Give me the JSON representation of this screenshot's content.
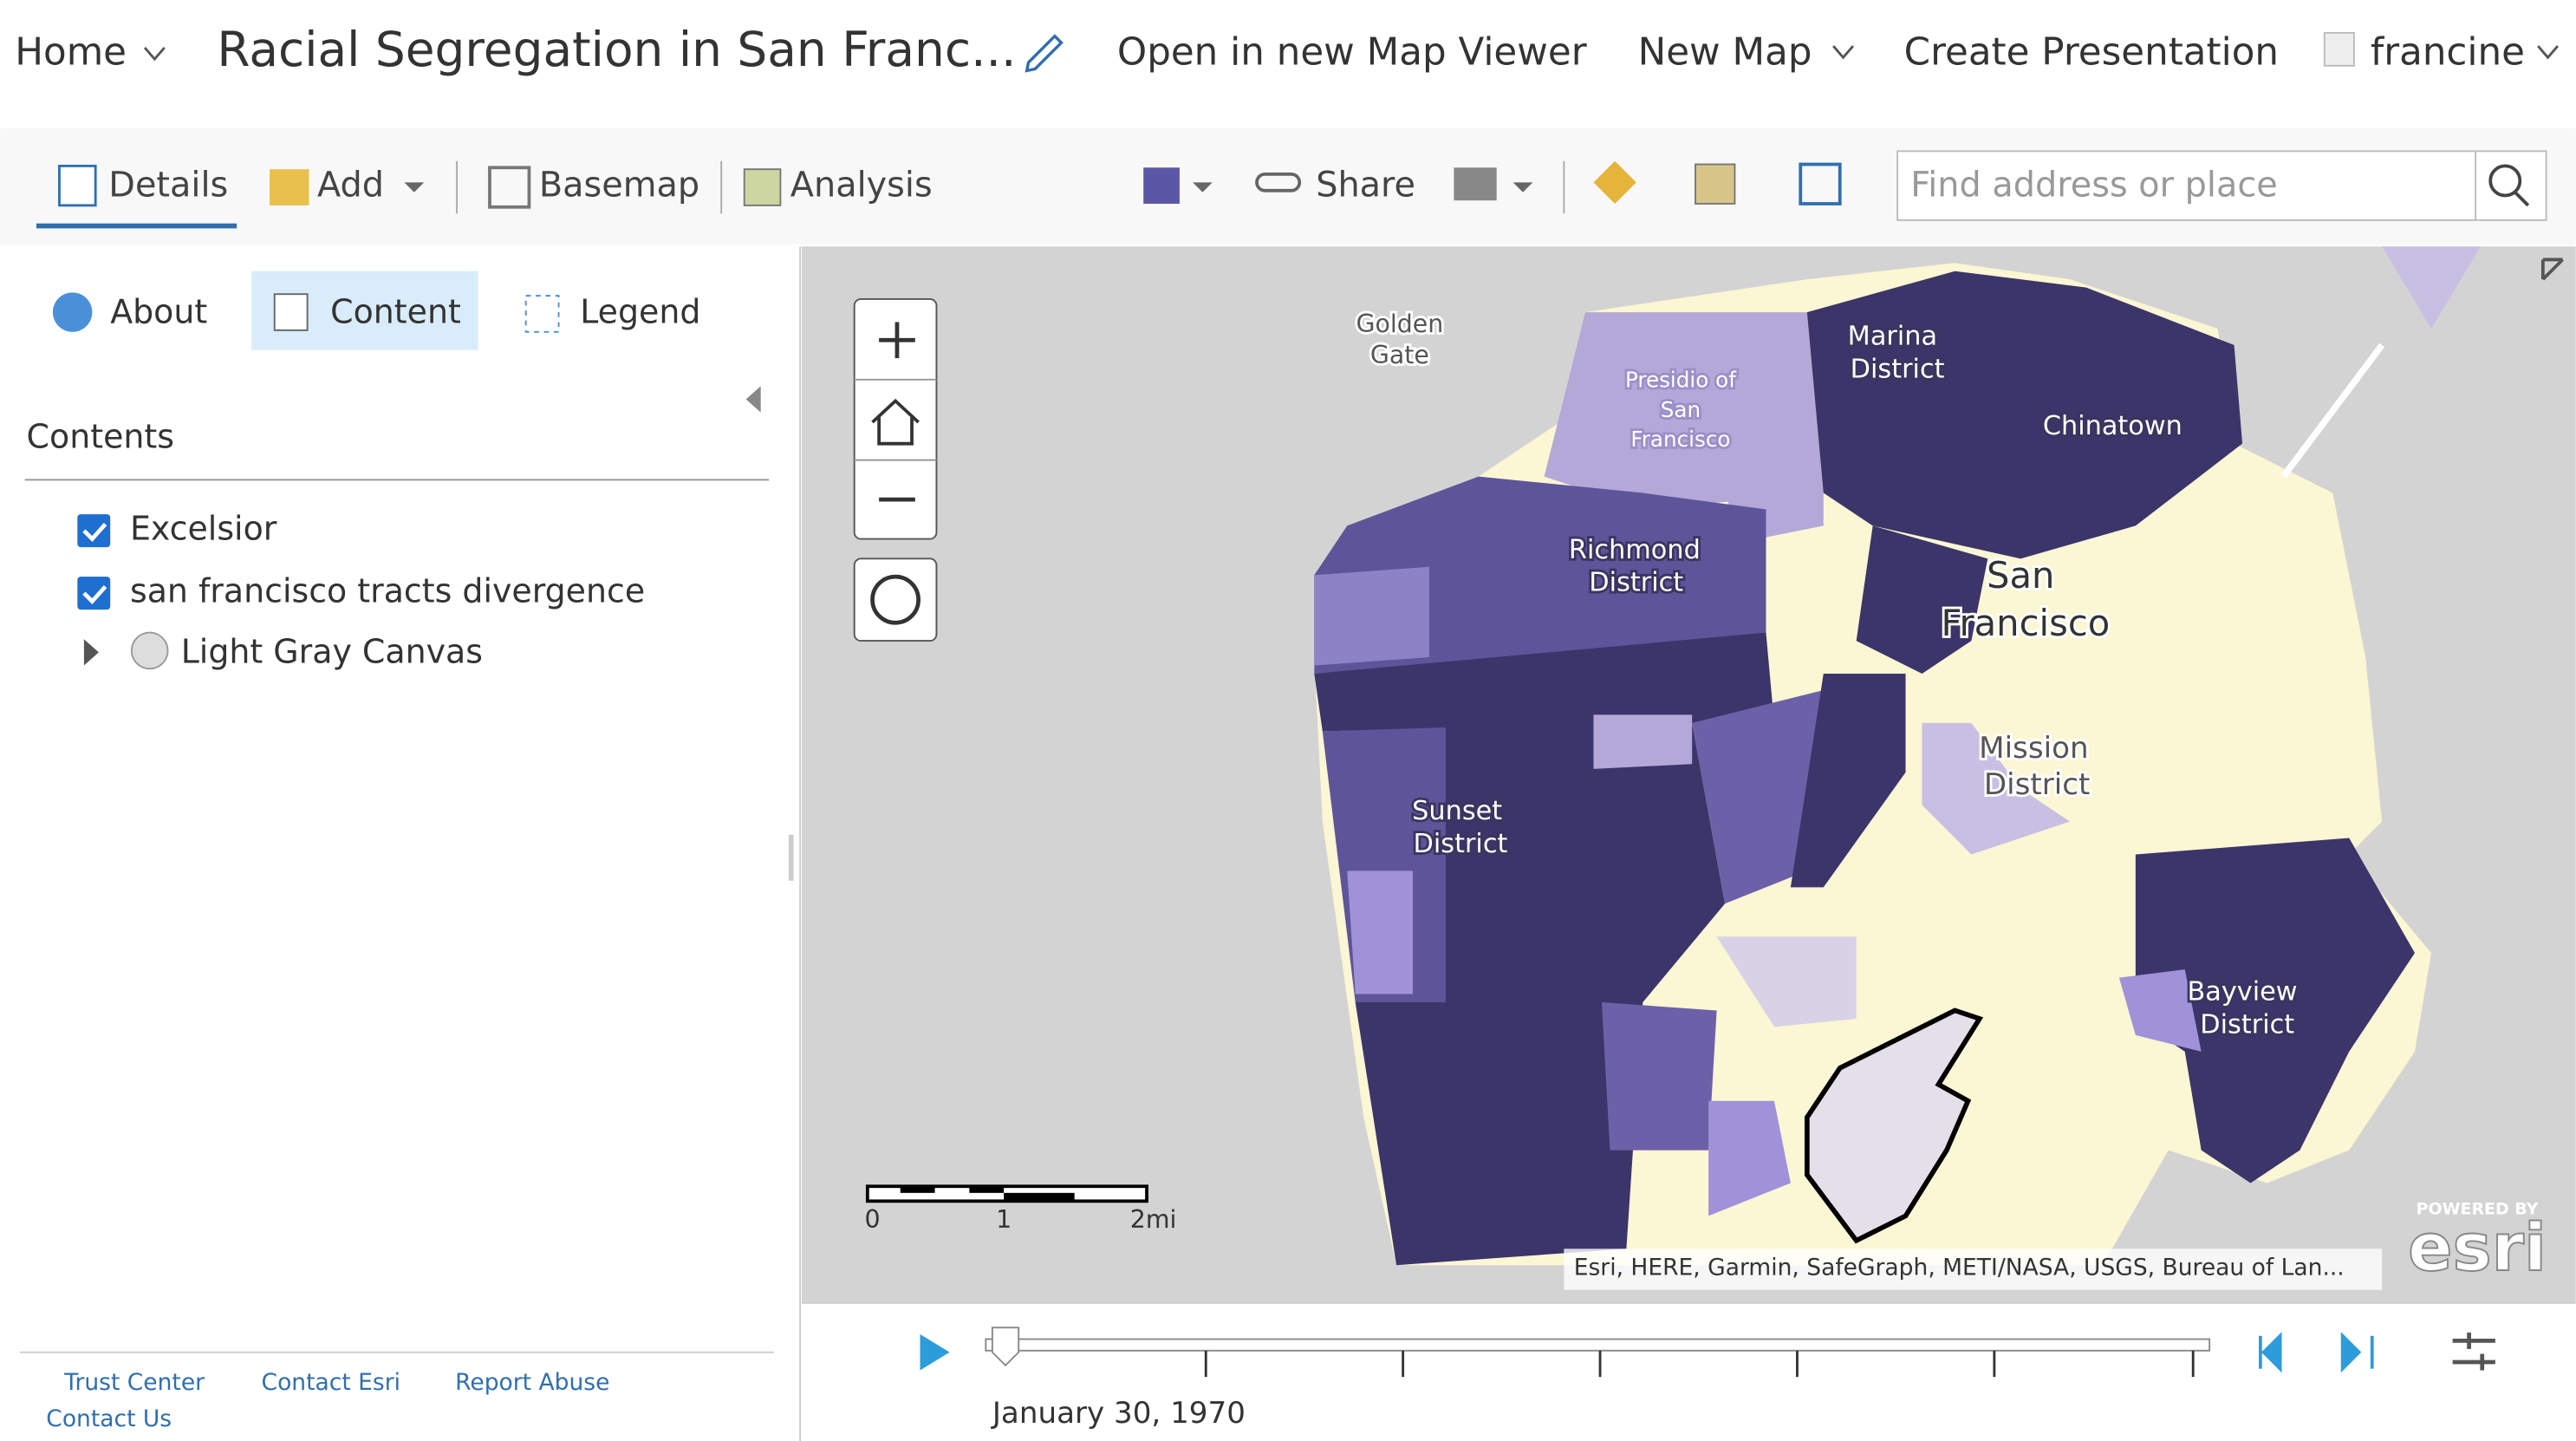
{
  "header": {
    "home": "Home",
    "title": "Racial Segregation in San Franc...",
    "open_viewer": "Open in new Map Viewer",
    "new_map": "New Map",
    "create_presentation": "Create Presentation",
    "user": "francine"
  },
  "toolbar": {
    "details": "Details",
    "add": "Add",
    "basemap": "Basemap",
    "analysis": "Analysis",
    "share": "Share",
    "search_placeholder": "Find address or place"
  },
  "panel": {
    "tabs": [
      "About",
      "Content",
      "Legend"
    ],
    "heading": "Contents",
    "layers": [
      "Excelsior",
      "san francisco tracts divergence",
      "Light Gray Canvas"
    ]
  },
  "map": {
    "labels": [
      [
        "Golden",
        "Gate"
      ],
      [
        "Presidio of",
        "San",
        "Francisco"
      ],
      [
        "Marina",
        "District"
      ],
      [
        "Chinatown"
      ],
      [
        "Richmond",
        "District"
      ],
      [
        "San",
        "Francisco"
      ],
      [
        "Mission",
        "District"
      ],
      [
        "Sunset",
        "District"
      ],
      [
        "Bayview",
        "District"
      ]
    ],
    "scale_labels": [
      "0",
      "1",
      "2mi"
    ],
    "attribution": "Esri, HERE, Garmin, SafeGraph, METI/NASA, USGS, Bureau of Lan...",
    "powered_by": "POWERED BY",
    "logo": "esri"
  },
  "timeline": {
    "date": "January 30, 1970"
  },
  "footer": {
    "links": [
      "Trust Center",
      "Contact Esri",
      "Report Abuse",
      "Contact Us"
    ]
  }
}
